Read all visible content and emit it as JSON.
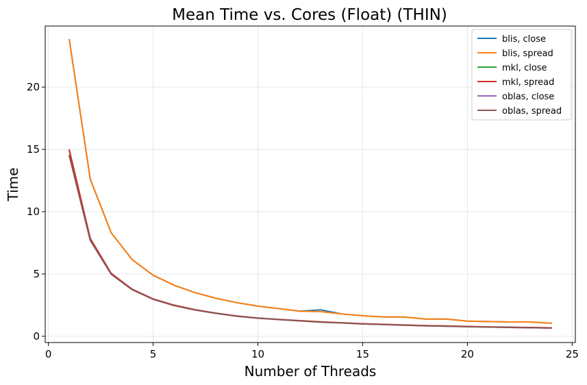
{
  "chart_data": {
    "type": "line",
    "title": "Mean Time vs. Cores (Float) (THIN)",
    "xlabel": "Number of Threads",
    "ylabel": "Time",
    "xlim": [
      -0.15,
      25.15
    ],
    "ylim": [
      -0.5,
      24.9
    ],
    "xticks": [
      0,
      5,
      10,
      15,
      20,
      25
    ],
    "yticks": [
      0,
      5,
      10,
      15,
      20
    ],
    "grid": true,
    "legend_position": "top-right",
    "x": [
      1,
      2,
      3,
      4,
      5,
      6,
      7,
      8,
      9,
      10,
      11,
      12,
      13,
      14,
      15,
      16,
      17,
      18,
      19,
      20,
      21,
      22,
      23,
      24
    ],
    "series": [
      {
        "name": "blis, close",
        "color": "#1f77b4",
        "values": [
          23.8,
          12.6,
          8.3,
          6.15,
          4.9,
          4.1,
          3.5,
          3.05,
          2.7,
          2.42,
          2.22,
          2.02,
          2.12,
          1.8,
          1.65,
          1.55,
          1.55,
          1.38,
          1.38,
          1.22,
          1.18,
          1.15,
          1.15,
          1.05
        ]
      },
      {
        "name": "blis, spread",
        "color": "#ff7f0e",
        "values": [
          23.8,
          12.6,
          8.3,
          6.15,
          4.9,
          4.1,
          3.5,
          3.05,
          2.7,
          2.42,
          2.22,
          2.02,
          1.98,
          1.8,
          1.65,
          1.55,
          1.55,
          1.38,
          1.38,
          1.22,
          1.18,
          1.15,
          1.15,
          1.05
        ]
      },
      {
        "name": "mkl, close",
        "color": "#2ca02c",
        "values": [
          14.9,
          7.8,
          5.0,
          3.75,
          2.98,
          2.48,
          2.12,
          1.85,
          1.62,
          1.46,
          1.35,
          1.25,
          1.15,
          1.08,
          1.0,
          0.95,
          0.9,
          0.85,
          0.82,
          0.78,
          0.75,
          0.72,
          0.7,
          0.67
        ]
      },
      {
        "name": "mkl, spread",
        "color": "#d62728",
        "values": [
          14.95,
          7.85,
          5.05,
          3.78,
          3.0,
          2.5,
          2.14,
          1.86,
          1.63,
          1.47,
          1.36,
          1.26,
          1.16,
          1.09,
          1.01,
          0.96,
          0.91,
          0.86,
          0.83,
          0.79,
          0.76,
          0.73,
          0.71,
          0.68
        ]
      },
      {
        "name": "oblas, close",
        "color": "#9467bd",
        "values": [
          14.5,
          7.7,
          4.98,
          3.74,
          2.97,
          2.47,
          2.11,
          1.84,
          1.61,
          1.45,
          1.34,
          1.24,
          1.14,
          1.07,
          0.99,
          0.94,
          0.89,
          0.84,
          0.81,
          0.77,
          0.74,
          0.71,
          0.69,
          0.66
        ]
      },
      {
        "name": "oblas, spread",
        "color": "#8c564b",
        "values": [
          14.5,
          7.7,
          4.98,
          3.74,
          2.97,
          2.47,
          2.11,
          1.84,
          1.61,
          1.45,
          1.34,
          1.24,
          1.14,
          1.07,
          0.99,
          0.94,
          0.89,
          0.84,
          0.81,
          0.77,
          0.74,
          0.71,
          0.69,
          0.66
        ]
      }
    ]
  }
}
